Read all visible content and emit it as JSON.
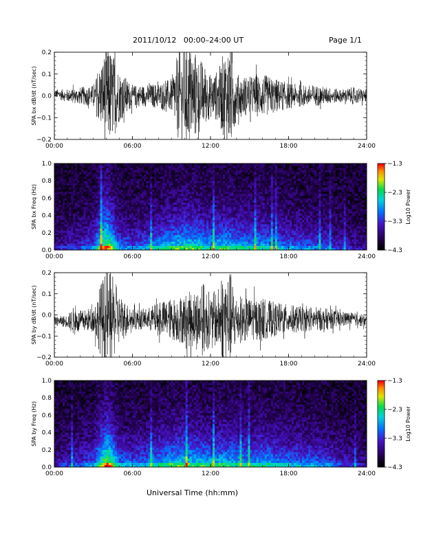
{
  "header": {
    "title": "2011/10/12   00:00–24:00 UT",
    "page": "Page 1/1"
  },
  "footer": {
    "x_axis_title": "Universal Time (hh:mm)"
  },
  "chart_data": [
    {
      "type": "line",
      "ylabel": "SPA bx dB/dt (nT/sec)",
      "x_ticks": [
        "00:00",
        "06:00",
        "12:00",
        "18:00",
        "24:00"
      ],
      "xlim": [
        0,
        24
      ],
      "y_ticks": [
        "0.2",
        "0.1",
        "0.0",
        "−0.1",
        "−0.2"
      ],
      "ylim": [
        -0.2,
        0.2
      ],
      "series": [
        {
          "hours": [
            0,
            1,
            2,
            3,
            3.7,
            4.1,
            4.5,
            5,
            6,
            7,
            8,
            9,
            9.5,
            10,
            10.7,
            11.5,
            12,
            12.6,
            13.1,
            13.6,
            14,
            15,
            16,
            17,
            18,
            19,
            20,
            21,
            22,
            23,
            24
          ],
          "amplitude": [
            0.02,
            0.03,
            0.04,
            0.05,
            0.18,
            0.25,
            0.2,
            0.12,
            0.05,
            0.05,
            0.06,
            0.08,
            0.2,
            0.25,
            0.22,
            0.15,
            0.1,
            0.12,
            0.22,
            0.25,
            0.1,
            0.09,
            0.1,
            0.08,
            0.06,
            0.05,
            0.05,
            0.04,
            0.03,
            0.04,
            0.03
          ],
          "center": [
            0.01,
            0.0,
            0.0,
            0.0,
            0.0,
            0.0,
            0.0,
            0.0,
            0.0,
            0.0,
            0.0,
            0.0,
            0.0,
            0.0,
            0.0,
            0.0,
            0.0,
            0.0,
            0.0,
            0.0,
            0.0,
            0.0,
            0.0,
            0.0,
            0.0,
            0.0,
            0.0,
            0.0,
            0.0,
            0.0,
            0.0
          ]
        }
      ]
    },
    {
      "type": "heatmap",
      "ylabel": "SPA bx Freq (Hz)",
      "x_ticks": [
        "00:00",
        "06:00",
        "12:00",
        "18:00",
        "24:00"
      ],
      "xlim": [
        0,
        24
      ],
      "y_ticks": [
        "1.0",
        "0.8",
        "0.6",
        "0.4",
        "0.2",
        "0.0"
      ],
      "ylim": [
        0,
        1.0
      ],
      "colorbar": {
        "label": "Log10 Power",
        "ticks": [
          "−1.3",
          "−2.3",
          "−3.3",
          "−4.3"
        ],
        "range": [
          -4.3,
          -1.3
        ]
      },
      "activity_hours": [
        0,
        1,
        2,
        3,
        3.7,
        4.1,
        4.5,
        5,
        6,
        7,
        8,
        9,
        10,
        11,
        12,
        13,
        14,
        15,
        16,
        17,
        18,
        19,
        20,
        21,
        22,
        23,
        24
      ],
      "activity_level": [
        0.2,
        0.3,
        0.35,
        0.5,
        0.9,
        1.0,
        0.8,
        0.5,
        0.45,
        0.5,
        0.6,
        0.7,
        0.75,
        0.72,
        0.65,
        0.7,
        0.65,
        0.6,
        0.62,
        0.55,
        0.5,
        0.48,
        0.45,
        0.4,
        0.3,
        0.25,
        0.2
      ]
    },
    {
      "type": "line",
      "ylabel": "SPA by dB/dt (nT/sec)",
      "x_ticks": [
        "00:00",
        "06:00",
        "12:00",
        "18:00",
        "24:00"
      ],
      "xlim": [
        0,
        24
      ],
      "y_ticks": [
        "0.2",
        "0.1",
        "0.0",
        "−0.1",
        "−0.2"
      ],
      "ylim": [
        -0.2,
        0.2
      ],
      "series": [
        {
          "hours": [
            0,
            1,
            1.5,
            2,
            3,
            3.7,
            4.1,
            4.5,
            5,
            6,
            7,
            8,
            9,
            10,
            11,
            11.5,
            12,
            12.6,
            13.1,
            13.6,
            14,
            15,
            16,
            17,
            18,
            19,
            20,
            21,
            22,
            23,
            24
          ],
          "amplitude": [
            0.02,
            0.03,
            0.07,
            0.05,
            0.06,
            0.2,
            0.25,
            0.2,
            0.12,
            0.05,
            0.05,
            0.08,
            0.1,
            0.12,
            0.15,
            0.18,
            0.12,
            0.15,
            0.25,
            0.22,
            0.12,
            0.1,
            0.1,
            0.08,
            0.07,
            0.06,
            0.06,
            0.05,
            0.04,
            0.03,
            0.03
          ],
          "center": [
            -0.03,
            -0.03,
            -0.03,
            -0.03,
            -0.02,
            -0.02,
            -0.02,
            -0.02,
            -0.02,
            -0.02,
            -0.02,
            -0.02,
            -0.02,
            -0.02,
            -0.02,
            -0.02,
            -0.02,
            -0.02,
            -0.02,
            -0.02,
            -0.02,
            -0.02,
            -0.02,
            -0.02,
            -0.02,
            -0.02,
            -0.02,
            -0.02,
            -0.02,
            -0.02,
            -0.03
          ]
        }
      ]
    },
    {
      "type": "heatmap",
      "ylabel": "SPA by Freq (Hz)",
      "x_ticks": [
        "00:00",
        "06:00",
        "12:00",
        "18:00",
        "24:00"
      ],
      "xlim": [
        0,
        24
      ],
      "y_ticks": [
        "1.0",
        "0.8",
        "0.6",
        "0.4",
        "0.2",
        "0.0"
      ],
      "ylim": [
        0,
        1.0
      ],
      "colorbar": {
        "label": "Log10 Power",
        "ticks": [
          "−1.3",
          "−2.3",
          "−3.3",
          "−4.3"
        ],
        "range": [
          -4.3,
          -1.3
        ]
      },
      "activity_hours": [
        0,
        1,
        2,
        3,
        3.7,
        4.1,
        4.5,
        5,
        6,
        7,
        8,
        9,
        10,
        11,
        12,
        13,
        14,
        15,
        16,
        17,
        18,
        19,
        20,
        21,
        22,
        23,
        24
      ],
      "activity_level": [
        0.2,
        0.35,
        0.4,
        0.5,
        0.9,
        1.0,
        0.85,
        0.55,
        0.5,
        0.55,
        0.62,
        0.7,
        0.75,
        0.72,
        0.66,
        0.7,
        0.68,
        0.62,
        0.65,
        0.6,
        0.55,
        0.52,
        0.5,
        0.45,
        0.35,
        0.28,
        0.22
      ]
    }
  ]
}
